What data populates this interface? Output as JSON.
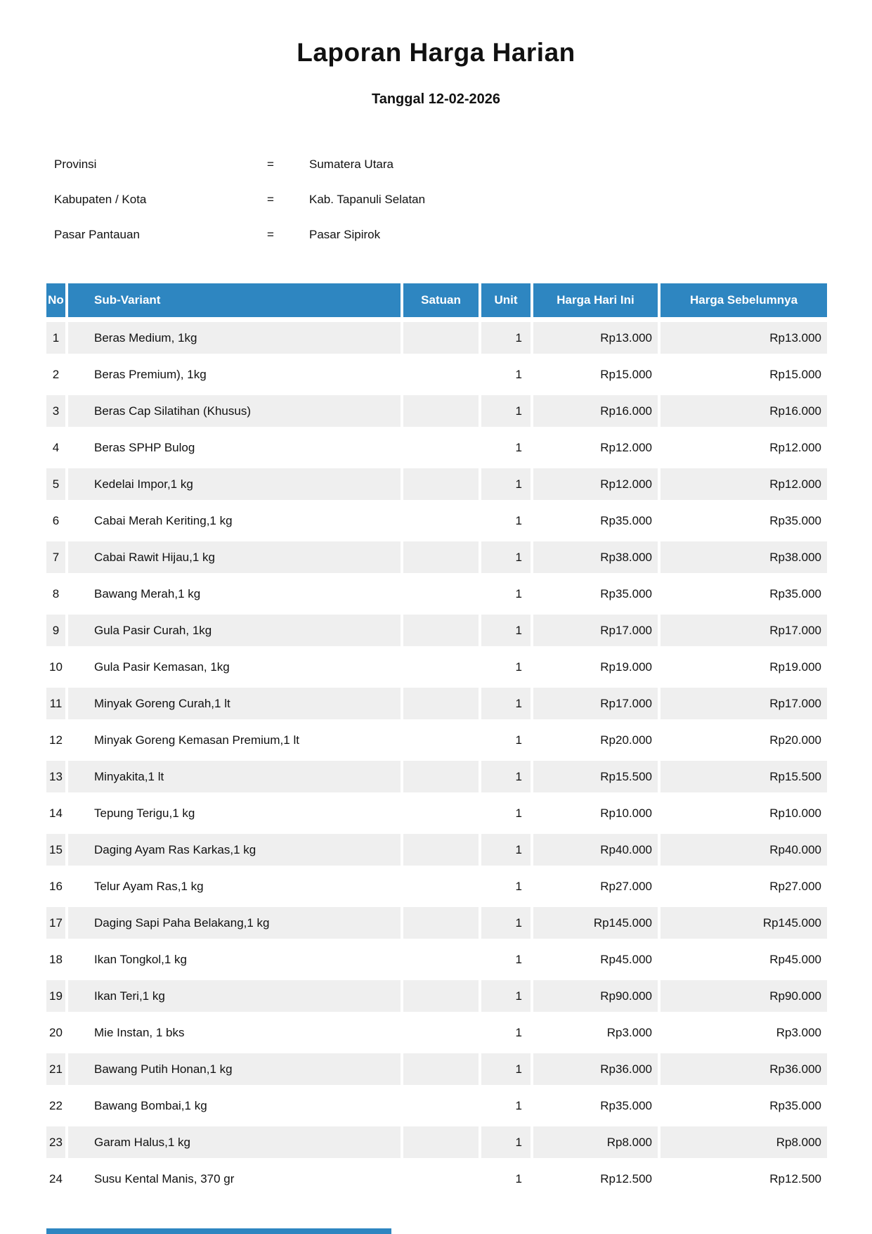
{
  "report": {
    "title": "Laporan Harga Harian",
    "date_line": "Tanggal 12-02-2026"
  },
  "metadata": {
    "rows": [
      {
        "label": "Provinsi",
        "eq": "=",
        "value": "Sumatera Utara"
      },
      {
        "label": "Kabupaten / Kota",
        "eq": "=",
        "value": "Kab. Tapanuli Selatan"
      },
      {
        "label": "Pasar Pantauan",
        "eq": "=",
        "value": "Pasar Sipirok"
      }
    ]
  },
  "table": {
    "columns": [
      "No",
      "Sub-Variant",
      "Satuan",
      "Unit",
      "Harga Hari Ini",
      "Harga Sebelumnya"
    ],
    "rows": [
      {
        "no": "1",
        "sub_variant": "Beras Medium, 1kg",
        "satuan": "",
        "unit": "1",
        "harga_hari_ini": "Rp13.000",
        "harga_sebelumnya": "Rp13.000"
      },
      {
        "no": "2",
        "sub_variant": "Beras Premium), 1kg",
        "satuan": "",
        "unit": "1",
        "harga_hari_ini": "Rp15.000",
        "harga_sebelumnya": "Rp15.000"
      },
      {
        "no": "3",
        "sub_variant": "Beras Cap Silatihan (Khusus)",
        "satuan": "",
        "unit": "1",
        "harga_hari_ini": "Rp16.000",
        "harga_sebelumnya": "Rp16.000"
      },
      {
        "no": "4",
        "sub_variant": "Beras SPHP Bulog",
        "satuan": "",
        "unit": "1",
        "harga_hari_ini": "Rp12.000",
        "harga_sebelumnya": "Rp12.000"
      },
      {
        "no": "5",
        "sub_variant": "Kedelai Impor,1 kg",
        "satuan": "",
        "unit": "1",
        "harga_hari_ini": "Rp12.000",
        "harga_sebelumnya": "Rp12.000"
      },
      {
        "no": "6",
        "sub_variant": "Cabai Merah Keriting,1 kg",
        "satuan": "",
        "unit": "1",
        "harga_hari_ini": "Rp35.000",
        "harga_sebelumnya": "Rp35.000"
      },
      {
        "no": "7",
        "sub_variant": "Cabai Rawit Hijau,1 kg",
        "satuan": "",
        "unit": "1",
        "harga_hari_ini": "Rp38.000",
        "harga_sebelumnya": "Rp38.000"
      },
      {
        "no": "8",
        "sub_variant": "Bawang Merah,1 kg",
        "satuan": "",
        "unit": "1",
        "harga_hari_ini": "Rp35.000",
        "harga_sebelumnya": "Rp35.000"
      },
      {
        "no": "9",
        "sub_variant": "Gula Pasir Curah, 1kg",
        "satuan": "",
        "unit": "1",
        "harga_hari_ini": "Rp17.000",
        "harga_sebelumnya": "Rp17.000"
      },
      {
        "no": "10",
        "sub_variant": "Gula Pasir Kemasan, 1kg",
        "satuan": "",
        "unit": "1",
        "harga_hari_ini": "Rp19.000",
        "harga_sebelumnya": "Rp19.000"
      },
      {
        "no": "11",
        "sub_variant": "Minyak Goreng Curah,1 lt",
        "satuan": "",
        "unit": "1",
        "harga_hari_ini": "Rp17.000",
        "harga_sebelumnya": "Rp17.000"
      },
      {
        "no": "12",
        "sub_variant": "Minyak Goreng Kemasan Premium,1 lt",
        "satuan": "",
        "unit": "1",
        "harga_hari_ini": "Rp20.000",
        "harga_sebelumnya": "Rp20.000"
      },
      {
        "no": "13",
        "sub_variant": "Minyakita,1 lt",
        "satuan": "",
        "unit": "1",
        "harga_hari_ini": "Rp15.500",
        "harga_sebelumnya": "Rp15.500"
      },
      {
        "no": "14",
        "sub_variant": "Tepung Terigu,1 kg",
        "satuan": "",
        "unit": "1",
        "harga_hari_ini": "Rp10.000",
        "harga_sebelumnya": "Rp10.000"
      },
      {
        "no": "15",
        "sub_variant": "Daging Ayam Ras Karkas,1 kg",
        "satuan": "",
        "unit": "1",
        "harga_hari_ini": "Rp40.000",
        "harga_sebelumnya": "Rp40.000"
      },
      {
        "no": "16",
        "sub_variant": "Telur Ayam Ras,1 kg",
        "satuan": "",
        "unit": "1",
        "harga_hari_ini": "Rp27.000",
        "harga_sebelumnya": "Rp27.000"
      },
      {
        "no": "17",
        "sub_variant": "Daging Sapi Paha Belakang,1 kg",
        "satuan": "",
        "unit": "1",
        "harga_hari_ini": "Rp145.000",
        "harga_sebelumnya": "Rp145.000"
      },
      {
        "no": "18",
        "sub_variant": "Ikan Tongkol,1 kg",
        "satuan": "",
        "unit": "1",
        "harga_hari_ini": "Rp45.000",
        "harga_sebelumnya": "Rp45.000"
      },
      {
        "no": "19",
        "sub_variant": "Ikan Teri,1 kg",
        "satuan": "",
        "unit": "1",
        "harga_hari_ini": "Rp90.000",
        "harga_sebelumnya": "Rp90.000"
      },
      {
        "no": "20",
        "sub_variant": "Mie Instan, 1 bks",
        "satuan": "",
        "unit": "1",
        "harga_hari_ini": "Rp3.000",
        "harga_sebelumnya": "Rp3.000"
      },
      {
        "no": "21",
        "sub_variant": "Bawang Putih Honan,1 kg",
        "satuan": "",
        "unit": "1",
        "harga_hari_ini": "Rp36.000",
        "harga_sebelumnya": "Rp36.000"
      },
      {
        "no": "22",
        "sub_variant": "Bawang Bombai,1 kg",
        "satuan": "",
        "unit": "1",
        "harga_hari_ini": "Rp35.000",
        "harga_sebelumnya": "Rp35.000"
      },
      {
        "no": "23",
        "sub_variant": "Garam Halus,1 kg",
        "satuan": "",
        "unit": "1",
        "harga_hari_ini": "Rp8.000",
        "harga_sebelumnya": "Rp8.000"
      },
      {
        "no": "24",
        "sub_variant": "Susu Kental Manis, 370 gr",
        "satuan": "",
        "unit": "1",
        "harga_hari_ini": "Rp12.500",
        "harga_sebelumnya": "Rp12.500"
      }
    ]
  },
  "colors": {
    "table_header_bg": "#2e86c1",
    "row_alt_bg": "#efefef",
    "text": "#111111",
    "page_bg": "#ffffff"
  }
}
